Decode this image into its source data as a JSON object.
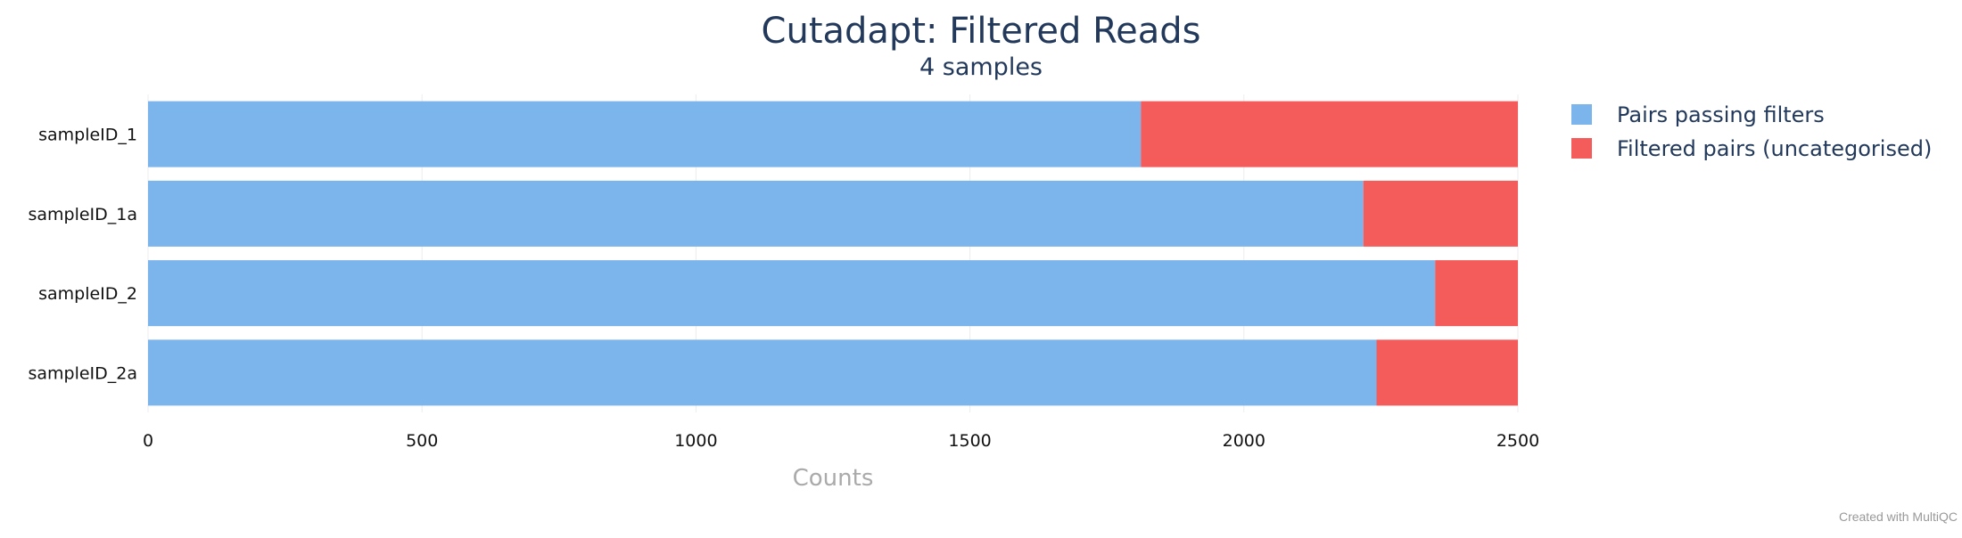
{
  "chart_data": {
    "type": "bar",
    "orientation": "horizontal",
    "stacked": true,
    "title": "Cutadapt: Filtered Reads",
    "subtitle": "4 samples",
    "xlabel": "Counts",
    "ylabel": "",
    "xlim": [
      0,
      2500
    ],
    "xticks": [
      0,
      500,
      1000,
      1500,
      2000,
      2500
    ],
    "grid": true,
    "legend_position": "right",
    "categories": [
      "sampleID_1",
      "sampleID_1a",
      "sampleID_2",
      "sampleID_2a"
    ],
    "series": [
      {
        "name": "Pairs passing filters",
        "color": "#7cb4ec",
        "values": [
          1812,
          2218,
          2349,
          2242
        ]
      },
      {
        "name": "Filtered pairs (uncategorised)",
        "color": "#f45b5b",
        "values": [
          688,
          282,
          151,
          258
        ]
      }
    ]
  },
  "footer": {
    "credit": "Created with MultiQC"
  },
  "colors": {
    "title": "#22395b",
    "axis_label": "#aaaaaa",
    "tick_label": "#111111",
    "grid": "#ececec"
  }
}
